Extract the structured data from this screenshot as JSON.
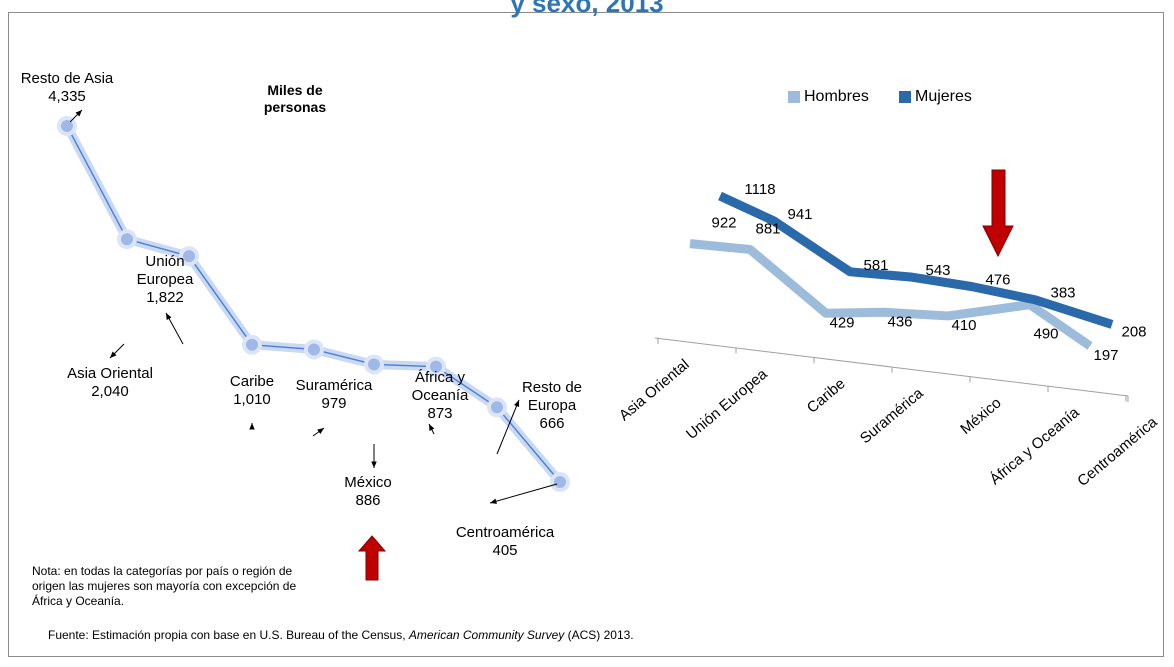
{
  "title": "y sexo, 2013",
  "units_label": "Miles de personas",
  "note": "Nota: en todas la categorías por país o región de origen las mujeres son mayoría con excepción de África y Oceanía.",
  "source_prefix": "Fuente: Estimación propia con base en U.S. Bureau of the Census, ",
  "source_italic": "American Community Survey",
  "source_suffix": " (ACS) 2013.",
  "colors": {
    "line": "#4a7fd4",
    "marker": "#9fb8e8",
    "hombres": "#9dbcdc",
    "mujeres": "#2a6aaa",
    "arrow": "#c00000"
  },
  "chart_data": [
    {
      "type": "line",
      "title": "",
      "categories": [
        "Resto de Asia",
        "Asia Oriental",
        "Unión Europea",
        "Caribe",
        "Suramérica",
        "México",
        "África y Oceanía",
        "Resto de Europa",
        "Centroamérica"
      ],
      "values": [
        4335,
        2040,
        1822,
        1010,
        979,
        886,
        873,
        666,
        405
      ],
      "value_labels": [
        "4,335",
        "2,040",
        "1,822",
        "1,010",
        "979",
        "886",
        "873",
        "666",
        "405"
      ],
      "label_lines": [
        [
          "Resto de Asia"
        ],
        [
          "Asia Oriental"
        ],
        [
          "Unión",
          "Europea"
        ],
        [
          "Caribe"
        ],
        [
          "Suramérica"
        ],
        [
          "México"
        ],
        [
          "África y",
          "Oceanía"
        ],
        [
          "Resto de",
          "Europa"
        ],
        [
          "Centroamérica"
        ]
      ]
    },
    {
      "type": "line",
      "title": "",
      "categories": [
        "Asia Oriental",
        "Unión Europea",
        "Caribe",
        "Suramérica",
        "México",
        "África y Oceanía",
        "Centroamérica"
      ],
      "legend": [
        "Hombres",
        "Mujeres"
      ],
      "series": [
        {
          "name": "Hombres",
          "values": [
            922,
            881,
            429,
            436,
            410,
            490,
            197
          ]
        },
        {
          "name": "Mujeres",
          "values": [
            1118,
            941,
            581,
            543,
            476,
            383,
            208
          ]
        }
      ]
    }
  ]
}
